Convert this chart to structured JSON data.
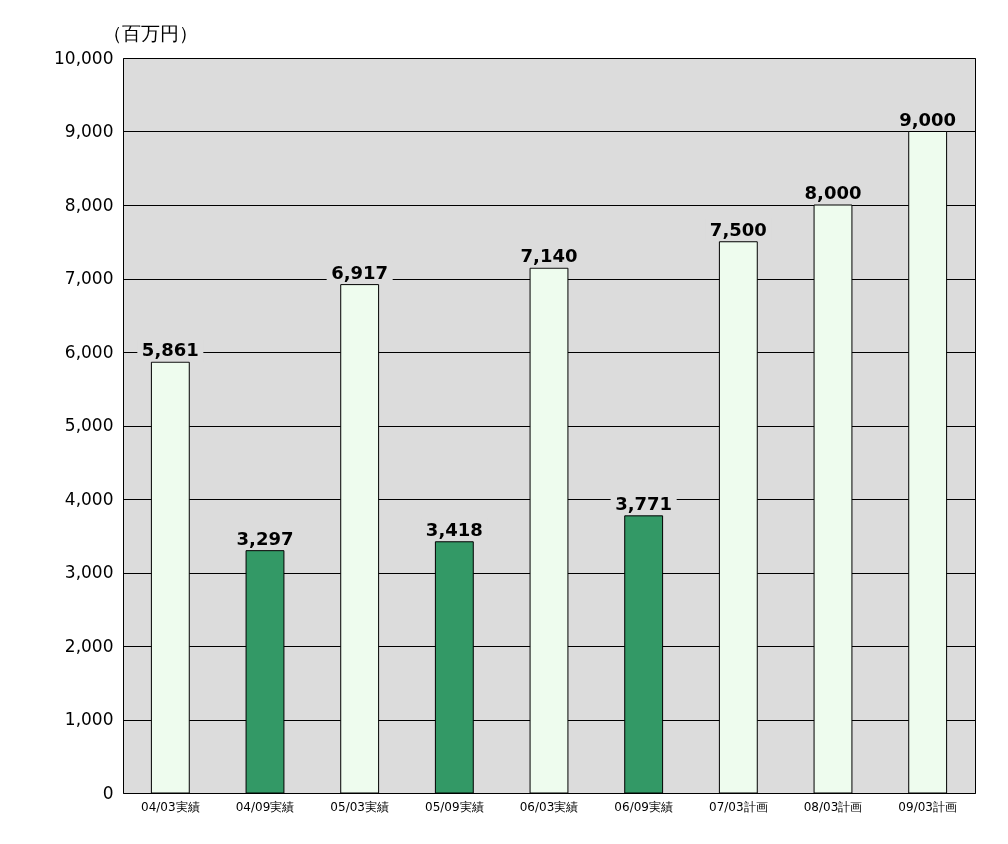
{
  "chart_data": {
    "type": "bar",
    "ylabel": "（百万円）",
    "categories": [
      "04/03実績",
      "04/09実績",
      "05/03実績",
      "05/09実績",
      "06/03実績",
      "06/09実績",
      "07/03計画",
      "08/03計画",
      "09/03計画"
    ],
    "values": [
      5861,
      3297,
      6917,
      3418,
      7140,
      3771,
      7500,
      8000,
      9000
    ],
    "colors": [
      "#eefcee",
      "#339966",
      "#eefcee",
      "#339966",
      "#eefcee",
      "#339966",
      "#eefcee",
      "#eefcee",
      "#eefcee"
    ],
    "ylim": [
      0,
      10000
    ],
    "yticks": [
      0,
      {
        "value": 1000,
        "label": "1,000"
      },
      {
        "value": 2000,
        "label": "2,000"
      },
      {
        "value": 3000,
        "label": "3,000"
      },
      {
        "value": 4000,
        "label": "4,000"
      },
      {
        "value": 5000,
        "label": "5,000"
      },
      {
        "value": 6000,
        "label": "6,000"
      },
      {
        "value": 7000,
        "label": "7,000"
      },
      {
        "value": 8000,
        "label": "8,000"
      },
      {
        "value": 9000,
        "label": "9,000"
      },
      {
        "value": 10000,
        "label": "10,000"
      }
    ],
    "grid": "y",
    "data_labels": true,
    "value_labels": [
      "5,861",
      "3,297",
      "6,917",
      "3,418",
      "7,140",
      "3,771",
      "7,500",
      "8,000",
      "9,000"
    ]
  }
}
